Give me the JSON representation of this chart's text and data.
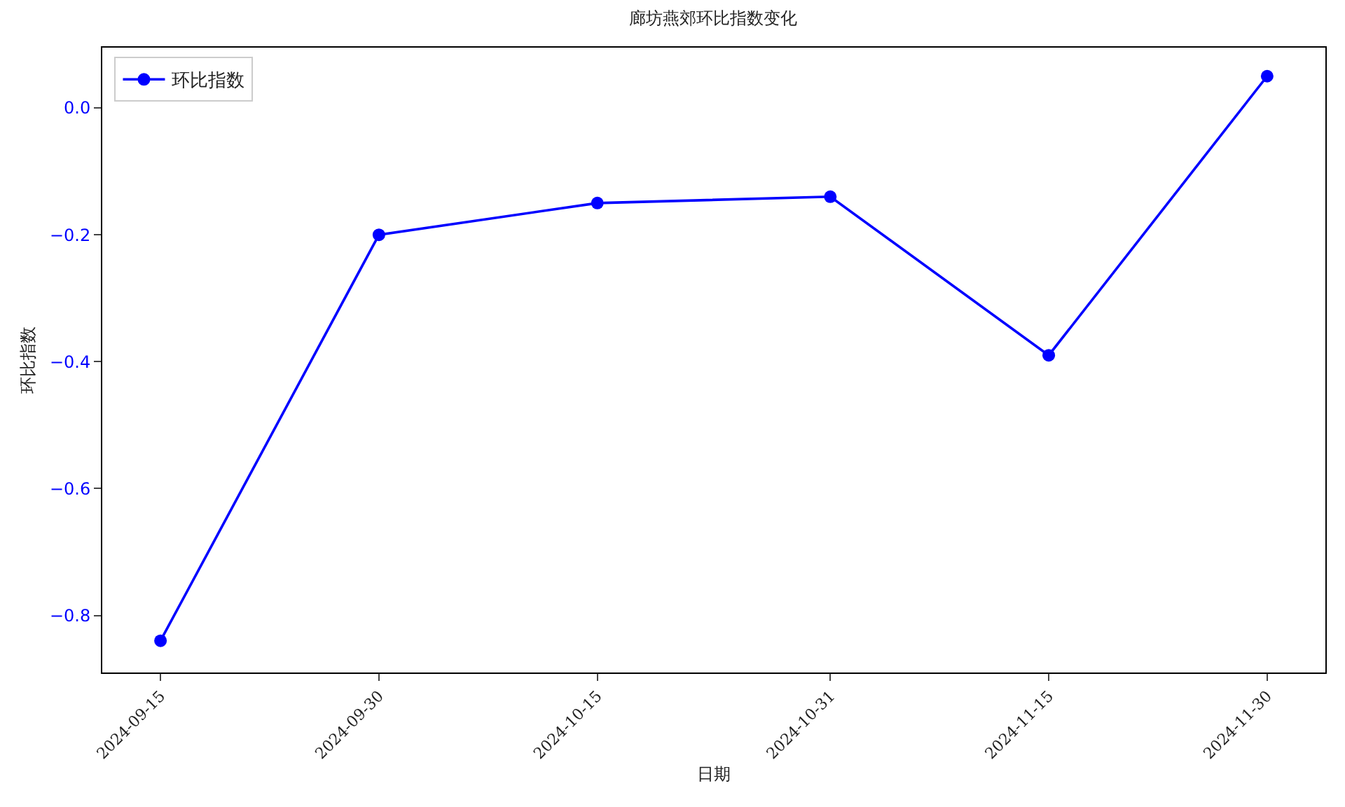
{
  "chart_data": {
    "type": "line",
    "title": "廊坊燕郊环比指数变化",
    "xlabel": "日期",
    "ylabel": "环比指数",
    "x": [
      "2024-09-15",
      "2024-09-30",
      "2024-10-15",
      "2024-10-31",
      "2024-11-15",
      "2024-11-30"
    ],
    "series": [
      {
        "name": "环比指数",
        "color": "#0000ff",
        "values": [
          -0.84,
          -0.2,
          -0.15,
          -0.14,
          -0.39,
          0.05
        ]
      }
    ],
    "xlim": [
      "2024-09-11",
      "2024-12-04"
    ],
    "xticks": [
      {
        "value": "2024-09-15",
        "label": "2024-09-15"
      },
      {
        "value": "2024-09-30",
        "label": "2024-09-30"
      },
      {
        "value": "2024-10-15",
        "label": "2024-10-15"
      },
      {
        "value": "2024-10-31",
        "label": "2024-10-31"
      },
      {
        "value": "2024-11-15",
        "label": "2024-11-15"
      },
      {
        "value": "2024-11-30",
        "label": "2024-11-30"
      }
    ],
    "ylim": [
      -0.89,
      0.095
    ],
    "yticks": [
      {
        "value": -0.8,
        "label": "−0.8"
      },
      {
        "value": -0.6,
        "label": "−0.6"
      },
      {
        "value": -0.4,
        "label": "−0.4"
      },
      {
        "value": -0.2,
        "label": "−0.2"
      },
      {
        "value": 0,
        "label": "0.0"
      }
    ],
    "marker": "circle",
    "line_style": "solid",
    "legend": "top left",
    "grid": false
  }
}
